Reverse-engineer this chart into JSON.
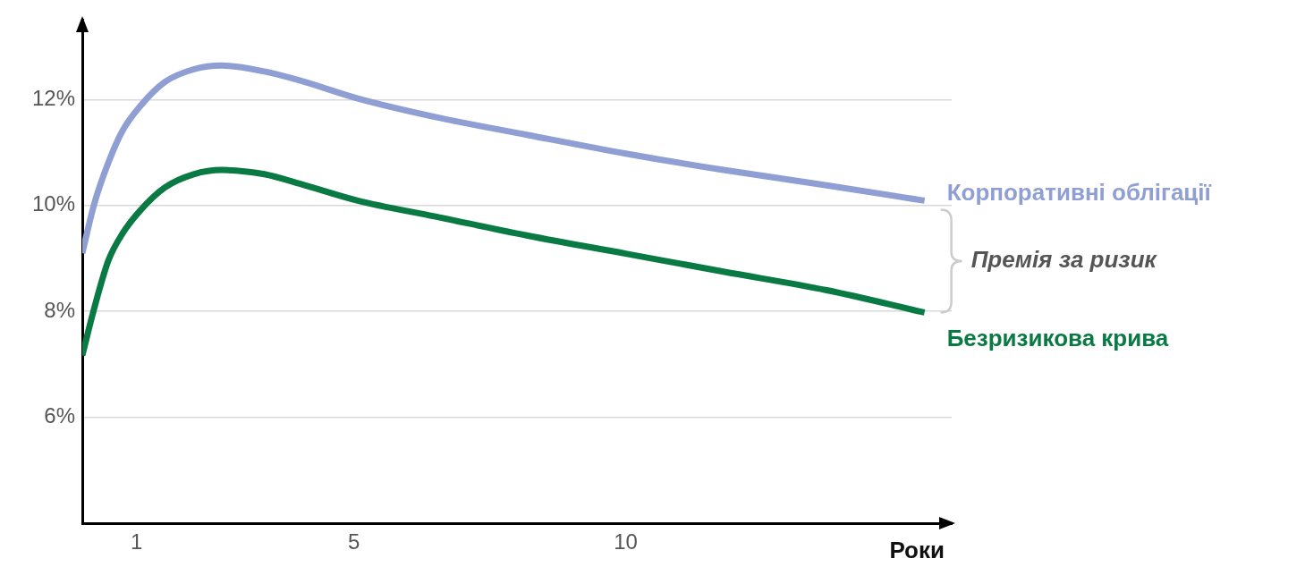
{
  "chart_data": {
    "type": "line",
    "xlabel": "Роки",
    "x": [
      0,
      0.22,
      0.48,
      0.74,
      1.07,
      1.52,
      2.05,
      2.57,
      3.35,
      4.0,
      5.07,
      6.5,
      8.2,
      10,
      11.8,
      13.7,
      15.5
    ],
    "series": [
      {
        "name": "Корпоративні облігації",
        "color": "#8f9fd3",
        "values": [
          9.1,
          10.03,
          10.81,
          11.41,
          11.88,
          12.33,
          12.57,
          12.64,
          12.53,
          12.36,
          12.02,
          11.67,
          11.33,
          10.98,
          10.67,
          10.38,
          10.09
        ]
      },
      {
        "name": "Безризикова крива",
        "color": "#0a7a44",
        "values": [
          7.17,
          8.06,
          8.96,
          9.47,
          9.91,
          10.34,
          10.59,
          10.67,
          10.59,
          10.41,
          10.09,
          9.79,
          9.43,
          9.09,
          8.75,
          8.4,
          7.98
        ]
      }
    ],
    "xlim": [
      0,
      16
    ],
    "xticks": [
      1,
      5,
      10
    ],
    "ylim": [
      4,
      13.5
    ],
    "yticks": [
      {
        "value": 6,
        "label": "6%"
      },
      {
        "value": 8,
        "label": "8%"
      },
      {
        "value": 10,
        "label": "10%"
      },
      {
        "value": 12,
        "label": "12%"
      }
    ],
    "grid": "y",
    "legend": false,
    "marker": "none",
    "line_style": "solid",
    "annotations": [
      "Премія за ризик"
    ]
  }
}
